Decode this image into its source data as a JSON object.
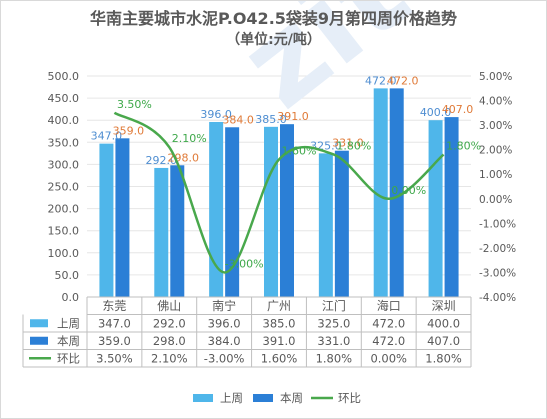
{
  "title": "华南主要城市水泥P.O42.5袋装9月第四周价格趋势",
  "subtitle": "（单位:元/吨）",
  "watermark": "zito",
  "colors": {
    "last_week": "#4fb6ea",
    "this_week": "#2b7fd6",
    "mom": "#49a84c",
    "last_week_label": "#4f8ed1",
    "this_week_label": "#e07b39",
    "mom_label": "#3ea84a",
    "axis_text": "#595959",
    "grid": "#e6e6e6"
  },
  "chart_data": {
    "type": "bar",
    "title": "华南主要城市水泥P.O42.5袋装9月第四周价格趋势",
    "subtitle": "（单位:元/吨）",
    "categories": [
      "东莞",
      "佛山",
      "南宁",
      "广州",
      "江门",
      "海口",
      "深圳"
    ],
    "series": [
      {
        "name": "上周",
        "type": "bar",
        "axis": "left",
        "color": "#4fb6ea",
        "values": [
          347.0,
          292.0,
          396.0,
          385.0,
          325.0,
          472.0,
          400.0
        ]
      },
      {
        "name": "本周",
        "type": "bar",
        "axis": "left",
        "color": "#2b7fd6",
        "values": [
          359.0,
          298.0,
          384.0,
          391.0,
          331.0,
          472.0,
          407.0
        ]
      },
      {
        "name": "环比",
        "type": "line",
        "axis": "right",
        "color": "#49a84c",
        "values": [
          3.5,
          2.1,
          -3.0,
          1.6,
          1.8,
          0.0,
          1.8
        ]
      }
    ],
    "bar_labels": {
      "上周": [
        "347.0",
        "292.0",
        "396.0",
        "385.0",
        "325.0",
        "472.0",
        "400.0"
      ],
      "本周": [
        "359.0",
        "298.0",
        "384.0",
        "391.0",
        "331.0",
        "472.0",
        "407.0"
      ]
    },
    "line_labels": [
      "3.50%",
      "2.10%",
      "-3.00%",
      "1.60%",
      "1.80%",
      "0.00%",
      "1.80%"
    ],
    "ylim": [
      0,
      500
    ],
    "y_ticks": [
      "0.0",
      "50.0",
      "100.0",
      "150.0",
      "200.0",
      "250.0",
      "300.0",
      "350.0",
      "400.0",
      "450.0",
      "500.0"
    ],
    "y2lim": [
      -4,
      5
    ],
    "y2_ticks": [
      "-4.00%",
      "-3.00%",
      "-2.00%",
      "-1.00%",
      "0.00%",
      "1.00%",
      "2.00%",
      "3.00%",
      "4.00%",
      "5.00%"
    ],
    "grid": true,
    "legend_position": "bottom",
    "data_table": {
      "rows": [
        {
          "name": "上周",
          "values": [
            "347.0",
            "292.0",
            "396.0",
            "385.0",
            "325.0",
            "472.0",
            "400.0"
          ]
        },
        {
          "name": "本周",
          "values": [
            "359.0",
            "298.0",
            "384.0",
            "391.0",
            "331.0",
            "472.0",
            "407.0"
          ]
        },
        {
          "name": "环比",
          "values": [
            "3.50%",
            "2.10%",
            "-3.00%",
            "1.60%",
            "1.80%",
            "0.00%",
            "1.80%"
          ]
        }
      ]
    }
  }
}
